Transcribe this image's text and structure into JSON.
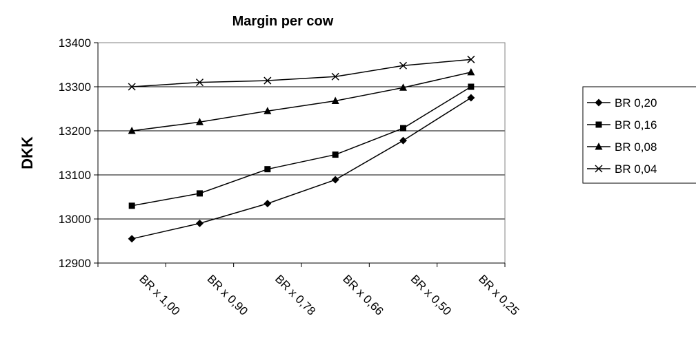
{
  "chart_data": {
    "type": "line",
    "title": "Margin per cow",
    "xlabel": "",
    "ylabel": "DKK",
    "categories": [
      "BR x 1,00",
      "BR x 0,90",
      "BR x 0,78",
      "BR x 0,66",
      "BR x 0,50",
      "BR x 0,25"
    ],
    "ylim": [
      12900,
      13400
    ],
    "yticks": [
      12900,
      13000,
      13100,
      13200,
      13300,
      13400
    ],
    "grid": true,
    "legend": "right",
    "series": [
      {
        "name": "BR 0,20",
        "marker": "diamond",
        "values": [
          12955,
          12990,
          13035,
          13089,
          13178,
          13275
        ]
      },
      {
        "name": "BR 0,16",
        "marker": "square",
        "values": [
          13030,
          13058,
          13113,
          13146,
          13206,
          13300
        ]
      },
      {
        "name": "BR 0,08",
        "marker": "triangle",
        "values": [
          13200,
          13220,
          13245,
          13268,
          13298,
          13333
        ]
      },
      {
        "name": "BR 0,04",
        "marker": "x",
        "values": [
          13300,
          13310,
          13314,
          13323,
          13348,
          13362
        ]
      }
    ]
  }
}
